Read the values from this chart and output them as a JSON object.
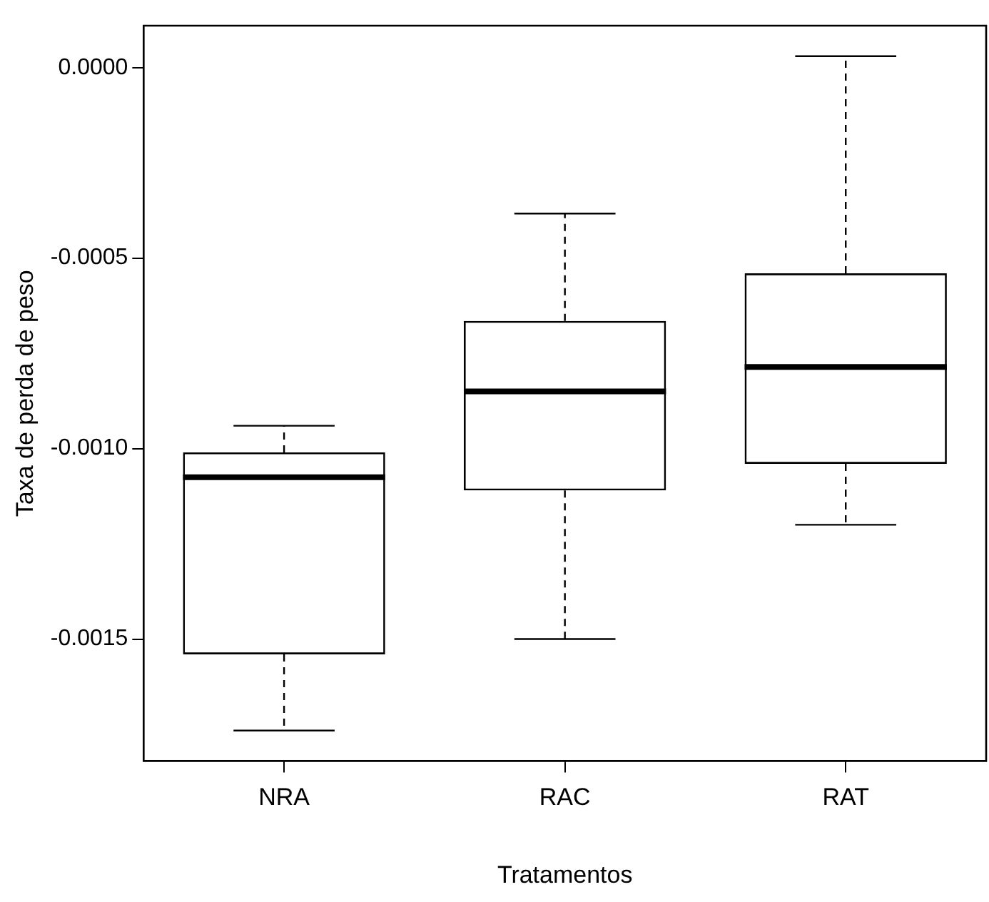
{
  "chart_data": {
    "type": "box",
    "xlabel": "Tratamentos",
    "ylabel": "Taxa de perda de peso",
    "categories": [
      "NRA",
      "RAC",
      "RAT"
    ],
    "boxes": [
      {
        "low": -0.00174,
        "q1": -0.00154,
        "median": -0.001075,
        "q3": -0.00101,
        "high": -0.00094
      },
      {
        "low": -0.0015,
        "q1": -0.00111,
        "median": -0.00085,
        "q3": -0.000665,
        "high": -0.000383
      },
      {
        "low": -0.0012,
        "q1": -0.00104,
        "median": -0.000786,
        "q3": -0.00054,
        "high": 3e-05
      }
    ],
    "color": "#000000",
    "ylim": [
      -0.00182,
      0.00011
    ],
    "yticks": [
      {
        "value": 0,
        "label": "0.0000"
      },
      {
        "value": -0.0005,
        "label": "-0.0005"
      },
      {
        "value": -0.001,
        "label": "-0.0010"
      },
      {
        "value": -0.0015,
        "label": "-0.0015"
      }
    ],
    "grid": false,
    "legend": false
  }
}
